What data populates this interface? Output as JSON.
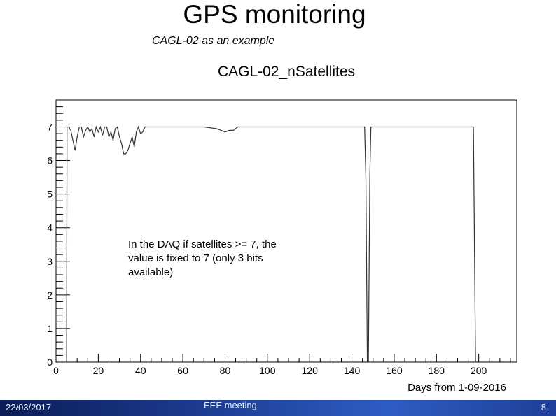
{
  "slide": {
    "title": "GPS monitoring",
    "subtitle": "CAGL-02 as an example",
    "annotation": "In the DAQ if satellites >= 7, the value is fixed to 7 (only 3 bits available)"
  },
  "footer": {
    "date": "22/03/2017",
    "center": "EEE meeting",
    "page": "8"
  },
  "colors": {
    "line": "#333333",
    "axis": "#000000",
    "footer_bar": "#1e3f97"
  },
  "chart_data": {
    "type": "line",
    "title": "CAGL-02_nSatellites",
    "xlabel": "Days from 1-09-2016",
    "ylabel": "",
    "xlim": [
      0,
      218
    ],
    "ylim": [
      0,
      7.8
    ],
    "x_ticks": [
      0,
      20,
      40,
      60,
      80,
      100,
      120,
      140,
      160,
      180,
      200
    ],
    "x_tick_labels": [
      "0",
      "20",
      "40",
      "60",
      "80",
      "100",
      "120",
      "140",
      "160",
      "180",
      "200"
    ],
    "y_ticks": [
      0,
      1,
      2,
      3,
      4,
      5,
      6,
      7
    ],
    "y_tick_labels": [
      "0",
      "1",
      "2",
      "3",
      "4",
      "5",
      "6",
      "7"
    ],
    "grid": false,
    "series": [
      {
        "x": [
          5,
          5.2,
          6,
          7,
          8,
          9,
          10,
          11,
          12,
          13,
          14,
          15,
          16,
          17,
          18,
          19,
          20,
          21,
          22,
          23,
          24,
          25,
          26,
          27,
          28,
          29,
          30,
          31,
          32,
          33,
          34,
          35,
          36,
          37,
          38,
          39,
          40,
          41,
          42,
          43,
          50,
          70,
          76,
          78,
          80,
          82,
          84,
          86,
          90,
          110,
          130,
          146,
          146.6,
          147.3,
          147.8,
          148.5,
          149,
          160,
          180,
          197,
          197.5,
          198.5,
          199
        ],
        "y": [
          0,
          7,
          7,
          6.9,
          6.6,
          6.3,
          6.7,
          7,
          7,
          6.7,
          6.9,
          7,
          6.85,
          6.95,
          6.7,
          7,
          6.85,
          7,
          6.75,
          7,
          7,
          6.7,
          6.85,
          6.6,
          6.95,
          7,
          6.7,
          6.5,
          6.2,
          6.2,
          6.3,
          6.5,
          6.7,
          6.4,
          6.85,
          7,
          6.8,
          6.85,
          7,
          7,
          7,
          7,
          6.95,
          6.9,
          6.85,
          6.9,
          6.9,
          7,
          7,
          7,
          7,
          7,
          5.5,
          0,
          0,
          5.6,
          7,
          7,
          7,
          7,
          7,
          0,
          0
        ]
      }
    ]
  }
}
